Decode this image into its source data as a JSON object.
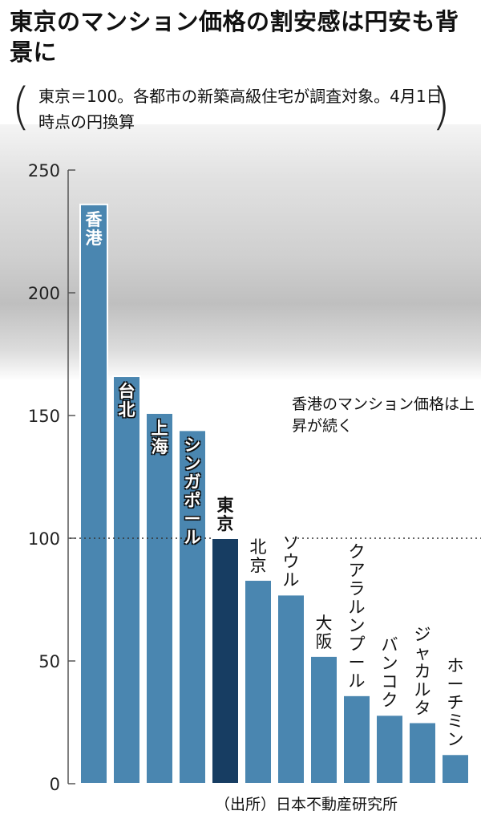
{
  "title": "東京のマンション価格の割安感は円安も背景に",
  "note": "東京＝100。各都市の新築高級住宅が調査対象。4月1日時点の円換算",
  "annotation": "香港のマンション価格は上昇が続く",
  "source": "（出所）日本不動産研究所",
  "colors": {
    "bar": "#4a86b0",
    "highlight": "#173d62",
    "axis": "#555555"
  },
  "chart_data": {
    "type": "bar",
    "title": "東京のマンション価格の割安感は円安も背景に",
    "ylim": [
      0,
      250
    ],
    "yticks": [
      0,
      50,
      100,
      150,
      200,
      250
    ],
    "reference_line": 100,
    "grid": false,
    "categories": [
      "香港",
      "台北",
      "上海",
      "シンガポール",
      "東京",
      "北京",
      "ソウル",
      "大阪",
      "クアラルンプール",
      "バンコク",
      "ジャカルタ",
      "ホーチミン"
    ],
    "values": [
      236,
      166,
      151,
      144,
      100,
      83,
      77,
      52,
      36,
      28,
      25,
      12
    ],
    "highlight": "東京"
  }
}
